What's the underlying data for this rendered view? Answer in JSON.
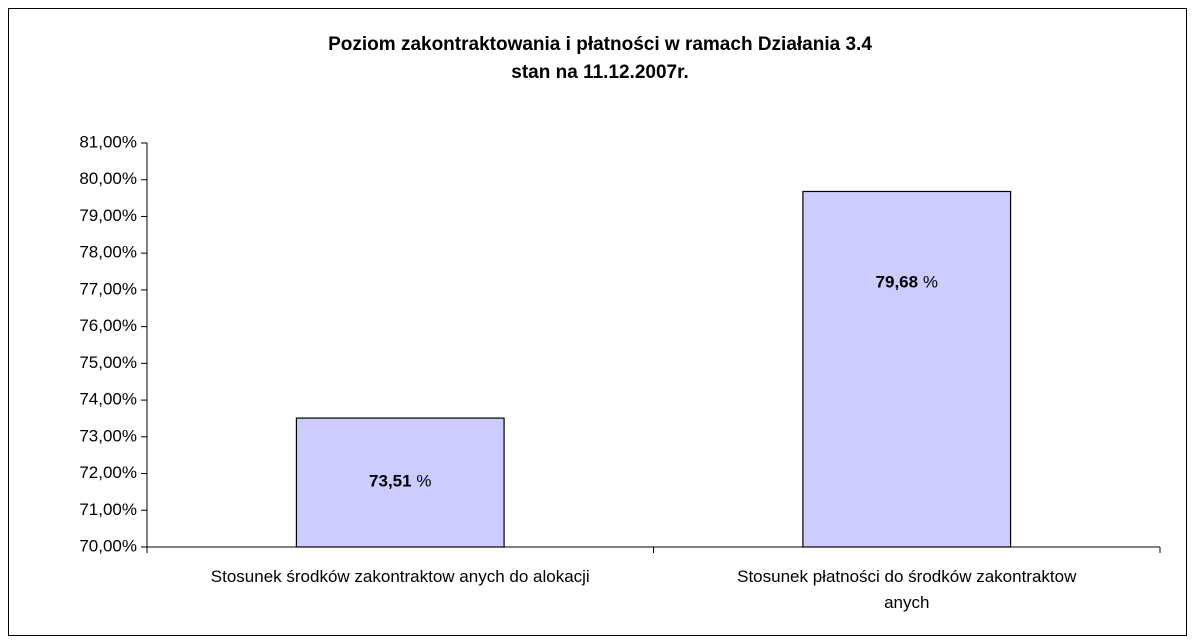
{
  "chart_data": {
    "type": "bar",
    "title": "Poziom zakontraktowania i płatności w ramach Działania 3.4",
    "subtitle": "stan na 11.12.2007r.",
    "categories": [
      "Stosunek środków  zakontraktow anych do alokacji",
      "Stosunek płatności do środków zakontraktow anych"
    ],
    "values": [
      73.51,
      79.68
    ],
    "value_labels": [
      "73,51 %",
      "79,68 %"
    ],
    "color": "#ccccff",
    "ylim": [
      70,
      81
    ],
    "yticks": [
      {
        "value": 70,
        "label": "70,00%"
      },
      {
        "value": 71,
        "label": "71,00%"
      },
      {
        "value": 72,
        "label": "72,00%"
      },
      {
        "value": 73,
        "label": "73,00%"
      },
      {
        "value": 74,
        "label": "74,00%"
      },
      {
        "value": 75,
        "label": "75,00%"
      },
      {
        "value": 76,
        "label": "76,00%"
      },
      {
        "value": 77,
        "label": "77,00%"
      },
      {
        "value": 78,
        "label": "78,00%"
      },
      {
        "value": 79,
        "label": "79,00%"
      },
      {
        "value": 80,
        "label": "80,00%"
      },
      {
        "value": 81,
        "label": "81,00%"
      }
    ]
  }
}
